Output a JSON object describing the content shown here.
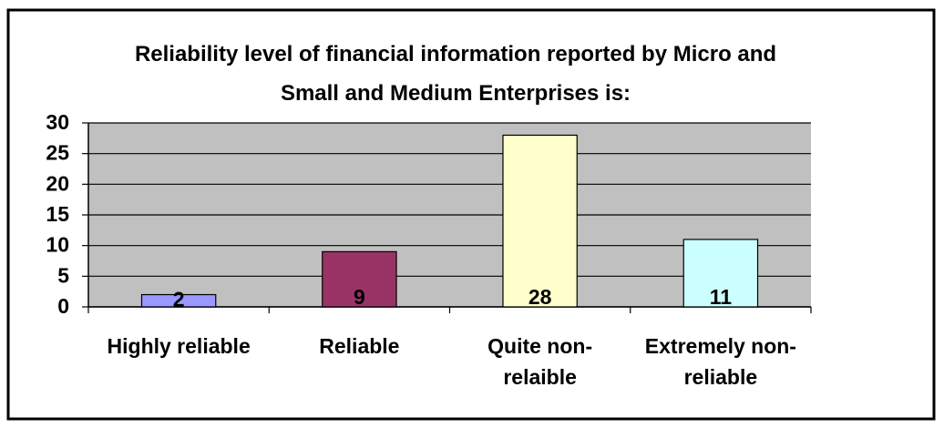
{
  "chart_data": {
    "type": "bar",
    "title": "Reliability level of financial information reported by Micro and Small and Medium Enterprises is:",
    "categories": [
      "Highly reliable",
      "Reliable",
      "Quite non-relaible",
      "Extremely non-reliable"
    ],
    "values": [
      2,
      9,
      28,
      11
    ],
    "colors": [
      "#9999ff",
      "#993366",
      "#ffffcc",
      "#ccffff"
    ],
    "ylim": [
      0,
      30
    ],
    "yticks": [
      0,
      5,
      10,
      15,
      20,
      25,
      30
    ],
    "grid": true
  }
}
